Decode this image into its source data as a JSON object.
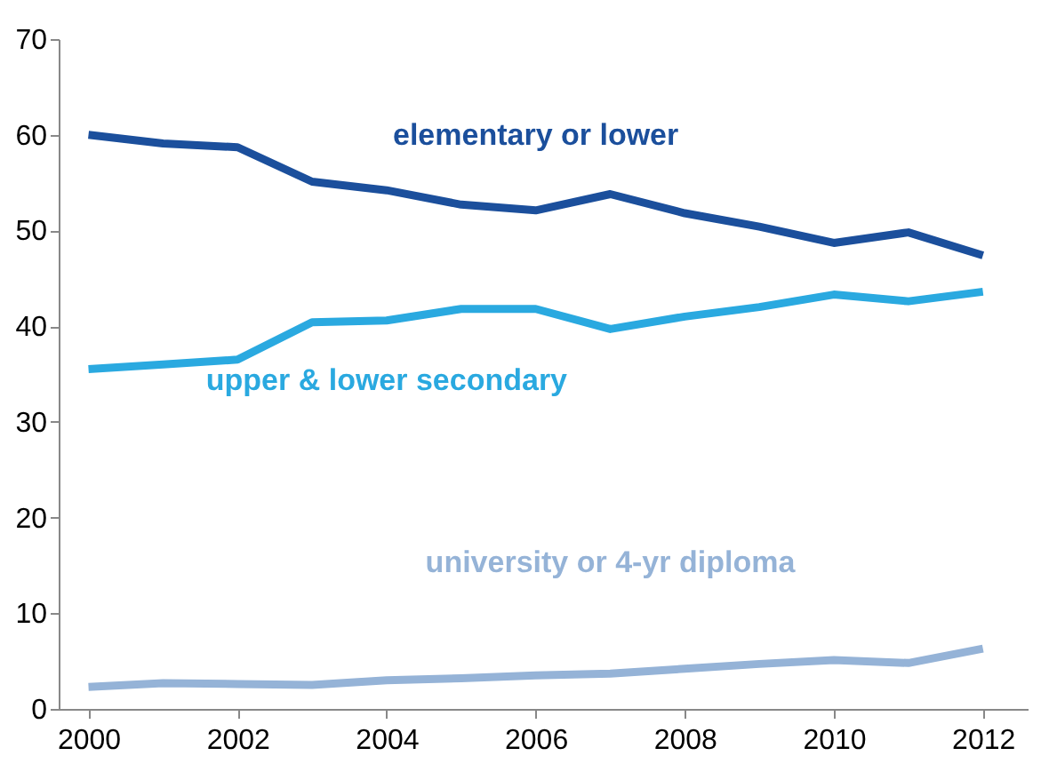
{
  "chart_data": {
    "type": "line",
    "x": [
      2000,
      2001,
      2002,
      2003,
      2004,
      2005,
      2006,
      2007,
      2008,
      2009,
      2010,
      2011,
      2012
    ],
    "series": [
      {
        "name": "elementary or lower",
        "color": "#1b4f9c",
        "values": [
          60.0,
          59.1,
          58.7,
          55.1,
          54.2,
          52.7,
          52.1,
          53.8,
          51.8,
          50.4,
          48.7,
          49.8,
          47.4
        ]
      },
      {
        "name": "upper & lower secondary",
        "color": "#2aa9e0",
        "values": [
          35.5,
          36.0,
          36.5,
          40.4,
          40.6,
          41.8,
          41.8,
          39.7,
          41.0,
          42.0,
          43.3,
          42.6,
          43.6
        ]
      },
      {
        "name": "university or 4-yr diploma",
        "color": "#95b3d7",
        "values": [
          2.3,
          2.7,
          2.6,
          2.5,
          3.0,
          3.2,
          3.5,
          3.7,
          4.2,
          4.7,
          5.1,
          4.8,
          6.3
        ]
      }
    ],
    "xlim": [
      1999.6,
      2012.6
    ],
    "xticks": [
      2000,
      2002,
      2004,
      2006,
      2008,
      2010,
      2012
    ],
    "ylim": [
      0,
      70
    ],
    "yticks": [
      0,
      10,
      20,
      30,
      40,
      50,
      60,
      70
    ],
    "grid": false,
    "legend": false,
    "marker": "none",
    "line_style": "solid"
  }
}
